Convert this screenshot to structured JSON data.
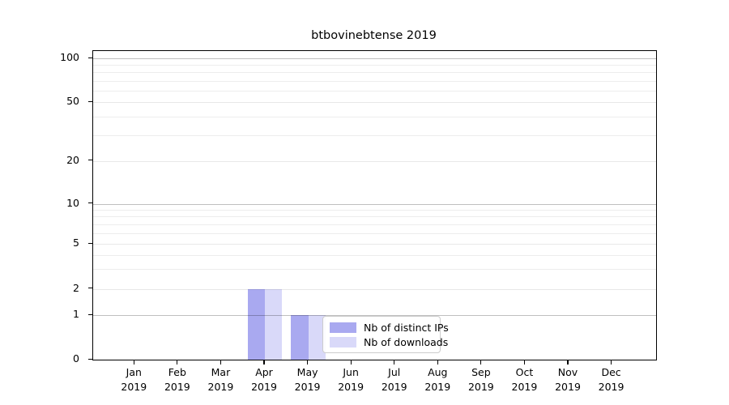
{
  "title": "btbovinebtense 2019",
  "chart_data": {
    "type": "bar",
    "title": "btbovinebtense 2019",
    "categories": [
      "Jan 2019",
      "Feb 2019",
      "Mar 2019",
      "Apr 2019",
      "May 2019",
      "Jun 2019",
      "Jul 2019",
      "Aug 2019",
      "Sep 2019",
      "Oct 2019",
      "Nov 2019",
      "Dec 2019"
    ],
    "x_tick_months": [
      "Jan",
      "Feb",
      "Mar",
      "Apr",
      "May",
      "Jun",
      "Jul",
      "Aug",
      "Sep",
      "Oct",
      "Nov",
      "Dec"
    ],
    "x_tick_year": "2019",
    "series": [
      {
        "name": "Nb of distinct IPs",
        "color": "#a9a9f0",
        "values": [
          0,
          0,
          0,
          2,
          1,
          0,
          0,
          0,
          0,
          0,
          0,
          0
        ]
      },
      {
        "name": "Nb of downloads",
        "color": "#d9d9f9",
        "values": [
          0,
          0,
          0,
          2,
          1,
          0,
          0,
          0,
          0,
          0,
          0,
          0
        ]
      }
    ],
    "yticks": [
      0,
      1,
      2,
      5,
      10,
      20,
      50,
      100
    ],
    "ytick_labels": [
      "0",
      "1",
      "2",
      "5",
      "10",
      "20",
      "50",
      "100"
    ],
    "minor_grid_values": [
      3,
      4,
      6,
      7,
      8,
      9,
      30,
      40,
      60,
      70,
      80,
      90
    ],
    "ylim": [
      0,
      115
    ],
    "yscale": "symlog-like (linear 0-1, log above)",
    "grid": "horizontal major and minor gridlines",
    "legend_position": "inside lower-center",
    "background_color": "#ffffff",
    "xlabel": "",
    "ylabel": ""
  },
  "legend": {
    "items": [
      {
        "label": "Nb of distinct IPs",
        "color": "#a9a9f0"
      },
      {
        "label": "Nb of downloads",
        "color": "#d9d9f9"
      }
    ]
  }
}
